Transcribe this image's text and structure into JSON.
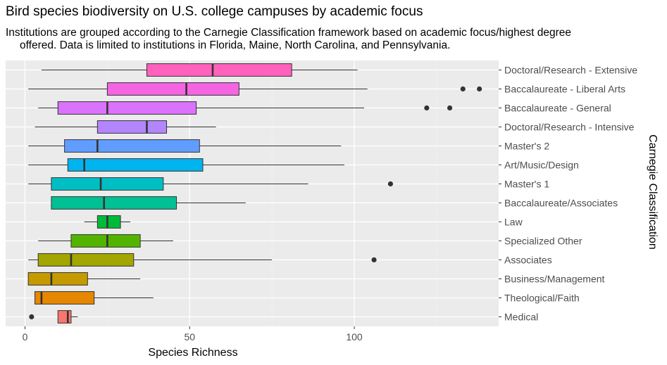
{
  "chart_data": {
    "type": "boxplot",
    "title": "Bird species biodiversity on U.S. college campuses by academic focus",
    "subtitle_lines": [
      "Institutions are grouped according to the Carnegie Classification framework based on academic focus/highest degree",
      "offered. Data is limited to institutions in Florida, Maine, North Carolina, and Pennsylvania."
    ],
    "xlabel": "Species Richness",
    "ylabel": "Carnegie Classification",
    "xlim": [
      -6,
      142
    ],
    "xticks": [
      0,
      50,
      100
    ],
    "xtick_labels": [
      "0",
      "50",
      "100"
    ],
    "grid": true,
    "legend": "none",
    "categories": [
      "Doctoral/Research - Extensive",
      "Baccalaureate - Liberal Arts",
      "Baccalaureate - General",
      "Doctoral/Research - Intensive",
      "Master's 2",
      "Art/Music/Design",
      "Master's 1",
      "Baccalaureate/Associates",
      "Law",
      "Specialized Other",
      "Associates",
      "Business/Management",
      "Theological/Faith",
      "Medical"
    ],
    "boxes": [
      {
        "min": 5,
        "q1": 37,
        "median": 57,
        "q3": 81,
        "max": 101,
        "outliers": [],
        "color": "#FF62BC"
      },
      {
        "min": 1,
        "q1": 25,
        "median": 49,
        "q3": 65,
        "max": 104,
        "outliers": [
          133,
          138
        ],
        "color": "#F564E3"
      },
      {
        "min": 4,
        "q1": 10,
        "median": 25,
        "q3": 52,
        "max": 103,
        "outliers": [
          122,
          129
        ],
        "color": "#DB72FB"
      },
      {
        "min": 3,
        "q1": 22,
        "median": 37,
        "q3": 43,
        "max": 58,
        "outliers": [],
        "color": "#B385FF"
      },
      {
        "min": 1,
        "q1": 12,
        "median": 22,
        "q3": 53,
        "max": 96,
        "outliers": [],
        "color": "#619CFF"
      },
      {
        "min": 1,
        "q1": 13,
        "median": 18,
        "q3": 54,
        "max": 97,
        "outliers": [],
        "color": "#00B4EF"
      },
      {
        "min": 1,
        "q1": 8,
        "median": 23,
        "q3": 42,
        "max": 86,
        "outliers": [
          111
        ],
        "color": "#00BFC4"
      },
      {
        "min": 8,
        "q1": 8,
        "median": 24,
        "q3": 46,
        "max": 67,
        "outliers": [],
        "color": "#00C094"
      },
      {
        "min": 18,
        "q1": 22,
        "median": 25,
        "q3": 29,
        "max": 32,
        "outliers": [],
        "color": "#00BA38"
      },
      {
        "min": 4,
        "q1": 14,
        "median": 25,
        "q3": 35,
        "max": 45,
        "outliers": [],
        "color": "#53B400"
      },
      {
        "min": 1,
        "q1": 4,
        "median": 14,
        "q3": 33,
        "max": 75,
        "outliers": [
          106
        ],
        "color": "#A3A500"
      },
      {
        "min": 1,
        "q1": 1,
        "median": 8,
        "q3": 19,
        "max": 35,
        "outliers": [],
        "color": "#C49A00"
      },
      {
        "min": 3,
        "q1": 3,
        "median": 5,
        "q3": 21,
        "max": 39,
        "outliers": [],
        "color": "#E58700"
      },
      {
        "min": 10,
        "q1": 10,
        "median": 13,
        "q3": 14,
        "max": 16,
        "outliers": [
          2
        ],
        "color": "#F8766D"
      }
    ]
  }
}
